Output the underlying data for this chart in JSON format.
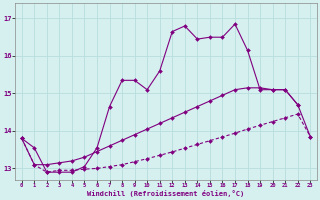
{
  "xlabel": "Windchill (Refroidissement éolien,°C)",
  "background_color": "#d6f0f0",
  "grid_color": "#b0d8d8",
  "line_color": "#800080",
  "xlim": [
    -0.5,
    23.5
  ],
  "ylim": [
    12.7,
    17.4
  ],
  "xticks": [
    0,
    1,
    2,
    3,
    4,
    5,
    6,
    7,
    8,
    9,
    10,
    11,
    12,
    13,
    14,
    15,
    16,
    17,
    18,
    19,
    20,
    21,
    22,
    23
  ],
  "yticks": [
    13,
    14,
    15,
    16,
    17
  ],
  "line1_x": [
    0,
    1,
    2,
    3,
    4,
    5,
    6,
    7,
    8,
    9,
    10,
    11,
    12,
    13,
    14,
    15,
    16,
    17,
    18,
    19,
    20,
    21,
    22
  ],
  "line1_y": [
    13.8,
    13.55,
    12.9,
    12.9,
    12.9,
    13.05,
    13.55,
    14.65,
    15.35,
    15.35,
    15.1,
    15.6,
    16.65,
    16.8,
    16.45,
    16.5,
    16.5,
    16.85,
    16.15,
    15.1,
    15.1,
    15.1,
    14.7
  ],
  "line2_x": [
    0,
    1,
    2,
    3,
    4,
    5,
    6,
    7,
    8,
    9,
    10,
    11,
    12,
    13,
    14,
    15,
    16,
    17,
    18,
    19,
    20,
    21,
    22,
    23
  ],
  "line2_y": [
    13.8,
    13.1,
    13.1,
    13.15,
    13.2,
    13.3,
    13.45,
    13.6,
    13.75,
    13.9,
    14.05,
    14.2,
    14.35,
    14.5,
    14.65,
    14.8,
    14.95,
    15.1,
    15.15,
    15.15,
    15.1,
    15.1,
    14.7,
    13.85
  ],
  "line3_x": [
    0,
    1,
    2,
    3,
    4,
    5,
    6,
    7,
    8,
    9,
    10,
    11,
    12,
    13,
    14,
    15,
    16,
    17,
    18,
    19,
    20,
    21,
    22,
    23
  ],
  "line3_y": [
    13.8,
    13.1,
    12.9,
    12.95,
    12.95,
    12.98,
    13.0,
    13.05,
    13.1,
    13.18,
    13.26,
    13.35,
    13.44,
    13.54,
    13.64,
    13.74,
    13.84,
    13.94,
    14.05,
    14.15,
    14.25,
    14.35,
    14.45,
    13.85
  ]
}
